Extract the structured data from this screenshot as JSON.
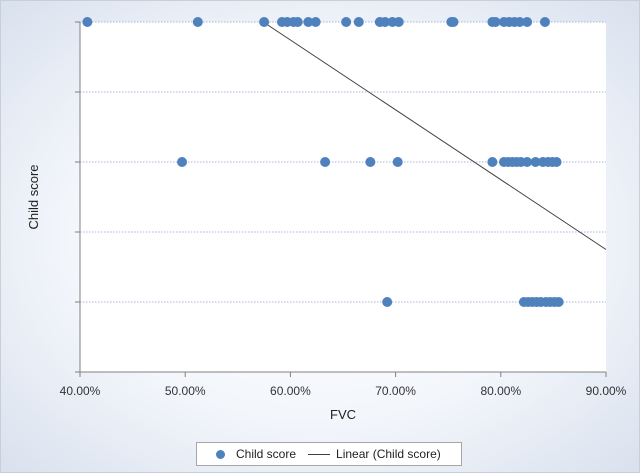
{
  "colors": {
    "marker": "#4f81bd",
    "trendline": "#404040",
    "gridline": "#aab6d6",
    "axis": "#808080"
  },
  "legend": {
    "series_label": "Child score",
    "trend_label": "Linear (Child score)"
  },
  "chart_data": {
    "type": "scatter",
    "title": "",
    "xlabel": "FVC",
    "ylabel": "Child score",
    "xlim": [
      0.4,
      0.9
    ],
    "ylim": [
      0,
      5
    ],
    "x_tick_values": [
      0.4,
      0.5,
      0.6,
      0.7,
      0.8,
      0.9
    ],
    "x_tick_labels": [
      "40.00%",
      "50.00%",
      "60.00%",
      "70.00%",
      "80.00%",
      "90.00%"
    ],
    "y_gridlines": [
      1,
      2,
      3,
      4,
      5
    ],
    "grid": "horizontal dotted",
    "legend_position": "bottom",
    "series": [
      {
        "name": "Child score",
        "points": [
          [
            0.407,
            5
          ],
          [
            0.512,
            5
          ],
          [
            0.575,
            5
          ],
          [
            0.592,
            5
          ],
          [
            0.597,
            5
          ],
          [
            0.603,
            5
          ],
          [
            0.607,
            5
          ],
          [
            0.617,
            5
          ],
          [
            0.624,
            5
          ],
          [
            0.653,
            5
          ],
          [
            0.665,
            5
          ],
          [
            0.685,
            5
          ],
          [
            0.69,
            5
          ],
          [
            0.697,
            5
          ],
          [
            0.703,
            5
          ],
          [
            0.753,
            5
          ],
          [
            0.755,
            5
          ],
          [
            0.792,
            5
          ],
          [
            0.795,
            5
          ],
          [
            0.803,
            5
          ],
          [
            0.808,
            5
          ],
          [
            0.813,
            5
          ],
          [
            0.818,
            5
          ],
          [
            0.825,
            5
          ],
          [
            0.842,
            5
          ],
          [
            0.497,
            3
          ],
          [
            0.633,
            3
          ],
          [
            0.676,
            3
          ],
          [
            0.702,
            3
          ],
          [
            0.792,
            3
          ],
          [
            0.803,
            3
          ],
          [
            0.807,
            3
          ],
          [
            0.811,
            3
          ],
          [
            0.815,
            3
          ],
          [
            0.819,
            3
          ],
          [
            0.825,
            3
          ],
          [
            0.833,
            3
          ],
          [
            0.84,
            3
          ],
          [
            0.845,
            3
          ],
          [
            0.849,
            3
          ],
          [
            0.853,
            3
          ],
          [
            0.692,
            1
          ],
          [
            0.822,
            1
          ],
          [
            0.826,
            1
          ],
          [
            0.83,
            1
          ],
          [
            0.834,
            1
          ],
          [
            0.838,
            1
          ],
          [
            0.843,
            1
          ],
          [
            0.847,
            1
          ],
          [
            0.851,
            1
          ],
          [
            0.855,
            1
          ]
        ]
      }
    ],
    "trendline": {
      "name": "Linear (Child score)",
      "type": "linear",
      "x": [
        0.474,
        0.9
      ],
      "y": [
        6.0,
        1.75
      ]
    }
  }
}
